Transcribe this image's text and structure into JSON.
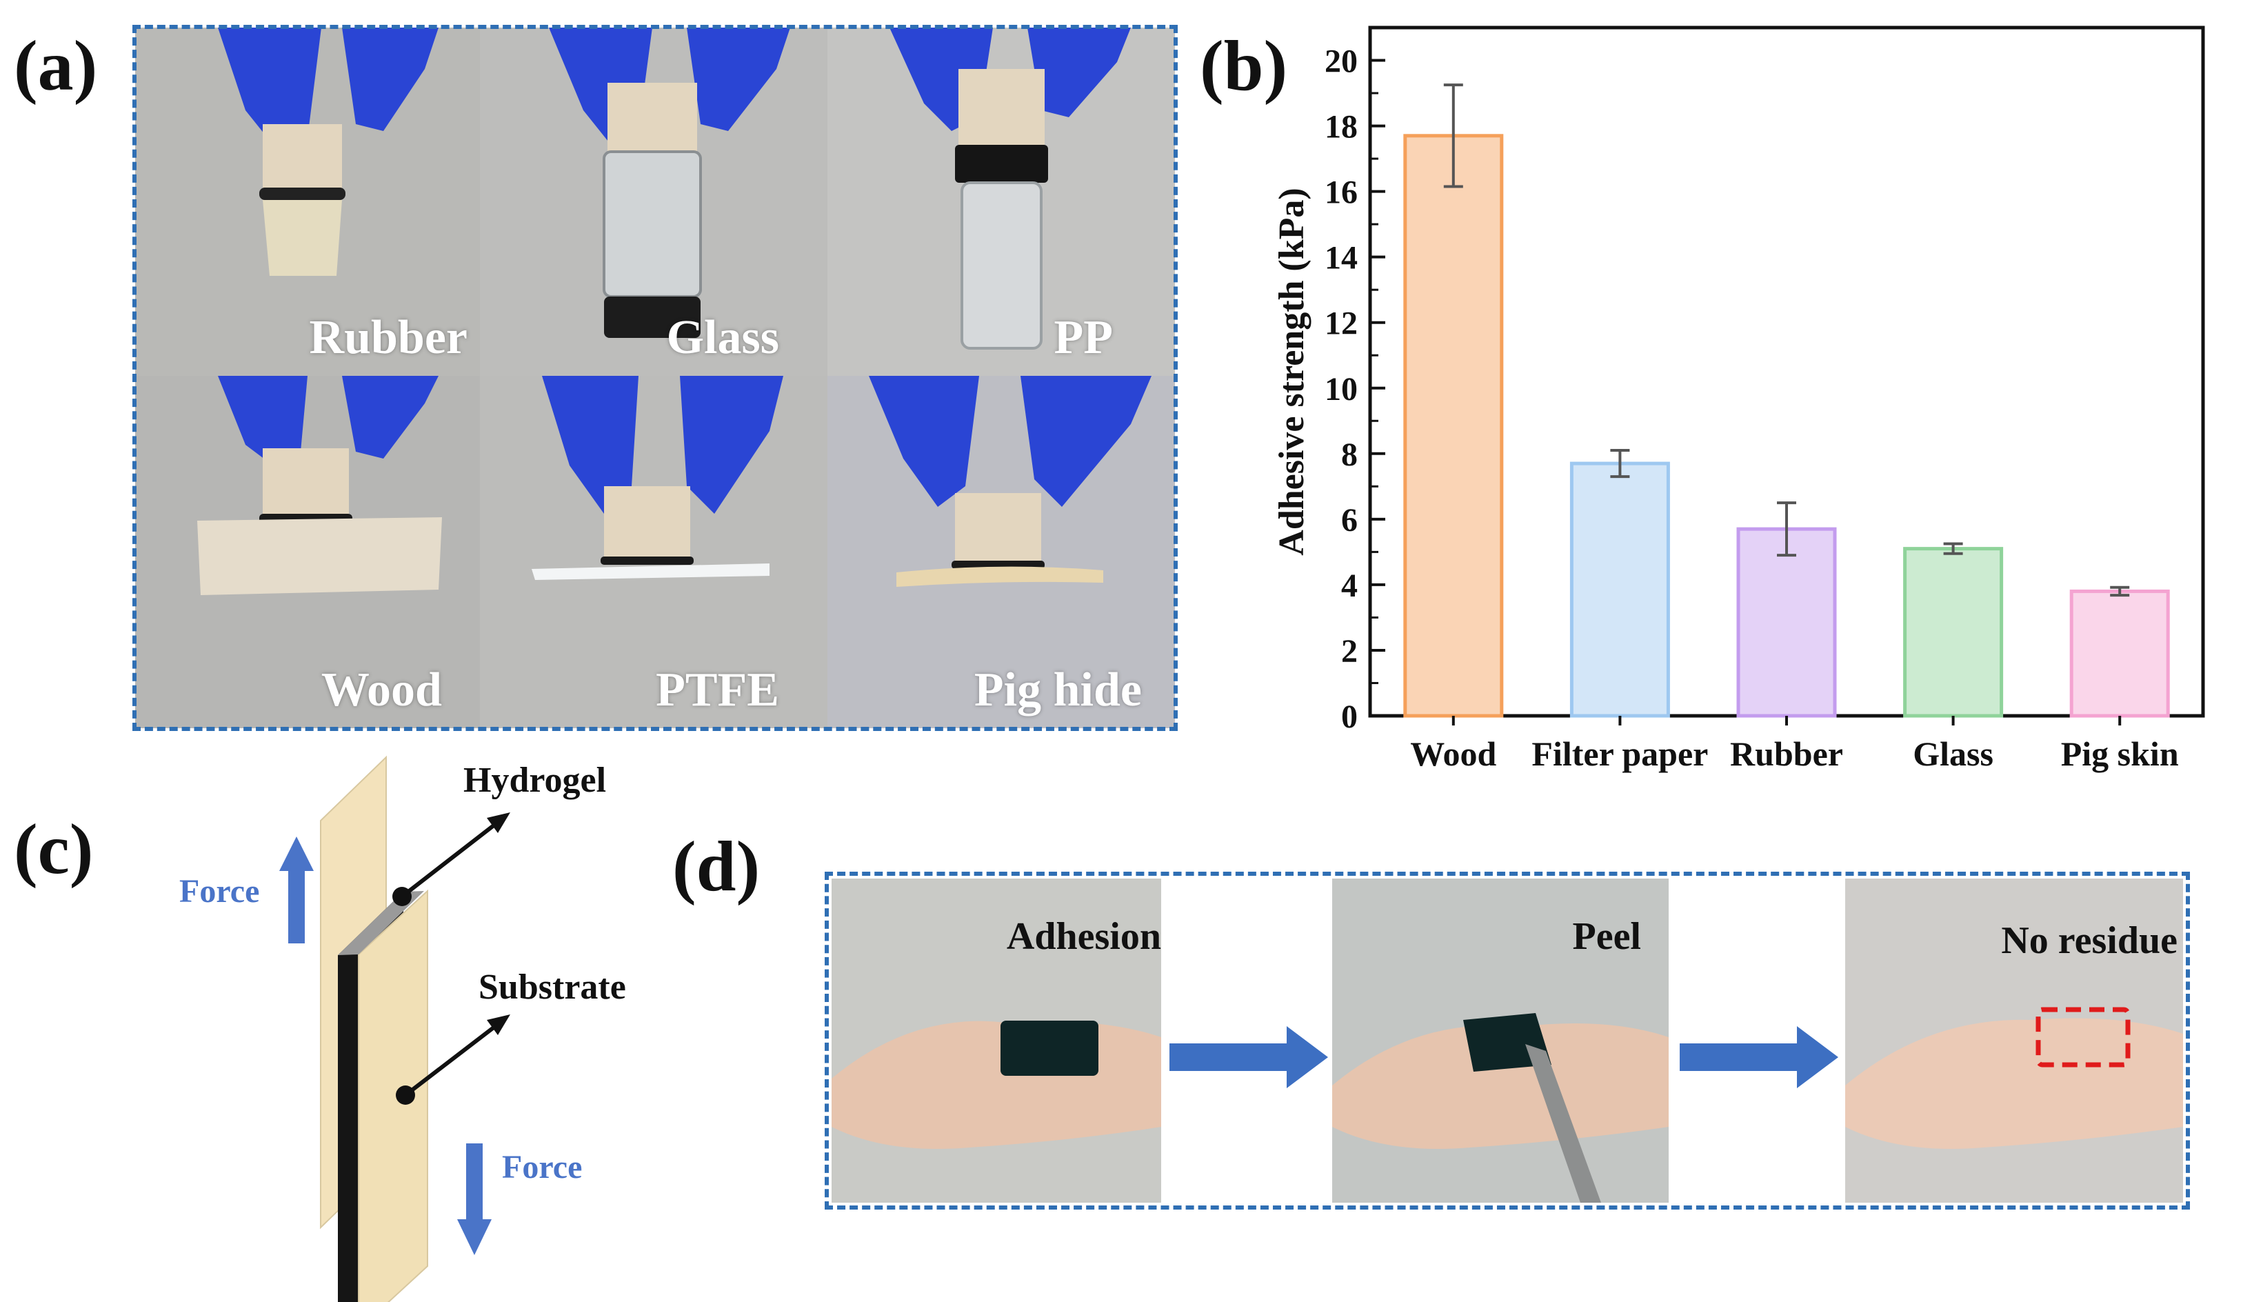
{
  "panels": {
    "a": {
      "label": "(a)",
      "photos": [
        {
          "label": "Rubber",
          "bg": "#b9b9b6"
        },
        {
          "label": "Glass",
          "bg": "#bdbdbb"
        },
        {
          "label": "PP",
          "bg": "#c4c4c2"
        },
        {
          "label": "Wood",
          "bg": "#b6b6b4"
        },
        {
          "label": "PTFE",
          "bg": "#bcbcba"
        },
        {
          "label": "Pig hide",
          "bg": "#bdbec4"
        }
      ]
    },
    "b": {
      "label": "(b)"
    },
    "c": {
      "label": "(c)",
      "hydrogel": "Hydrogel",
      "substrate": "Substrate",
      "force_up": "Force",
      "force_down": "Force"
    },
    "d": {
      "label": "(d)",
      "steps": [
        {
          "label": "Adhesion"
        },
        {
          "label": "Peel"
        },
        {
          "label": "No residue"
        }
      ]
    }
  },
  "chart_data": {
    "type": "bar",
    "categories": [
      "Wood",
      "Filter paper",
      "Rubber",
      "Glass",
      "Pig skin"
    ],
    "values": [
      17.7,
      7.7,
      5.7,
      5.1,
      3.8
    ],
    "errors": [
      1.55,
      0.4,
      0.8,
      0.15,
      0.12
    ],
    "colors": [
      "#f5a05a",
      "#9ec8f0",
      "#c39cee",
      "#8fd39a",
      "#f4a3d1"
    ],
    "ylabel": "Adhesive strength (kPa)",
    "xlabel": "",
    "ylim": [
      0,
      21
    ],
    "yticks": [
      "0",
      "2",
      "4",
      "6",
      "8",
      "10",
      "12",
      "14",
      "16",
      "18",
      "20"
    ],
    "grid": false
  }
}
